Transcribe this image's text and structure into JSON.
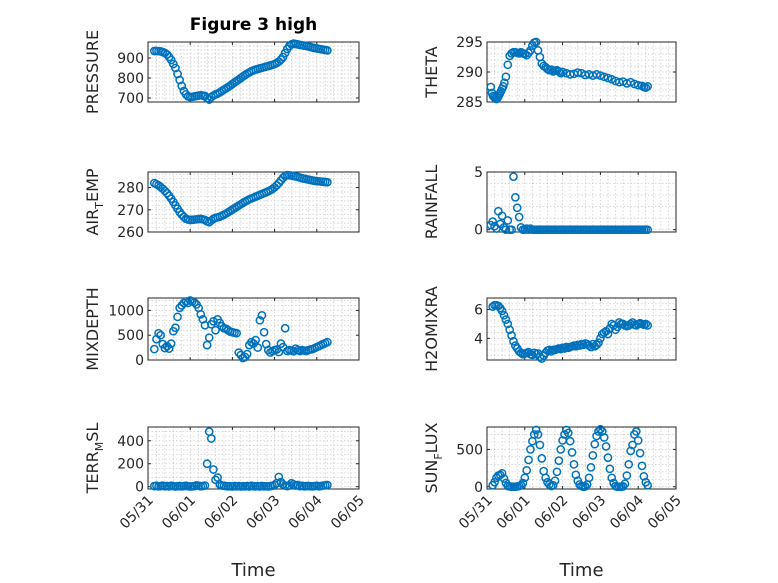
{
  "figure": {
    "title": "Figure 3 high",
    "x_tick_labels": [
      "05/31",
      "06/01",
      "06/02",
      "06/03",
      "06/04",
      "06/05"
    ],
    "xlabel": "Time",
    "marker_color": "#0072bd",
    "background": "#ffffff"
  },
  "chart_data": [
    {
      "type": "scatter",
      "panel": "PRESSURE",
      "title": "Figure 3 high",
      "ylabel": "PRESSURE",
      "ylim": [
        680,
        980
      ],
      "yticks": [
        700,
        800,
        900
      ],
      "xlim": [
        0,
        5
      ],
      "x": [
        0.15,
        0.2,
        0.25,
        0.3,
        0.35,
        0.4,
        0.45,
        0.5,
        0.55,
        0.6,
        0.65,
        0.7,
        0.75,
        0.8,
        0.85,
        0.9,
        0.95,
        1.0,
        1.05,
        1.1,
        1.15,
        1.2,
        1.25,
        1.3,
        1.35,
        1.4,
        1.45,
        1.5,
        1.55,
        1.6,
        1.65,
        1.7,
        1.75,
        1.8,
        1.85,
        1.9,
        1.95,
        2.0,
        2.05,
        2.1,
        2.15,
        2.2,
        2.25,
        2.3,
        2.35,
        2.4,
        2.45,
        2.5,
        2.55,
        2.6,
        2.65,
        2.7,
        2.75,
        2.8,
        2.85,
        2.9,
        2.95,
        3.0,
        3.05,
        3.1,
        3.15,
        3.2,
        3.25,
        3.3,
        3.35,
        3.4,
        3.45,
        3.5,
        3.55,
        3.6,
        3.65,
        3.7,
        3.75,
        3.8,
        3.85,
        3.9,
        3.95,
        4.0,
        4.05,
        4.1,
        4.15,
        4.2,
        4.25
      ],
      "y": [
        935,
        935,
        934,
        933,
        930,
        925,
        918,
        905,
        890,
        870,
        850,
        820,
        790,
        760,
        735,
        718,
        708,
        705,
        706,
        708,
        710,
        712,
        714,
        712,
        710,
        700,
        692,
        705,
        712,
        718,
        722,
        728,
        735,
        742,
        748,
        755,
        762,
        770,
        778,
        785,
        792,
        800,
        808,
        815,
        822,
        828,
        834,
        838,
        842,
        845,
        848,
        851,
        854,
        857,
        860,
        863,
        866,
        870,
        875,
        882,
        892,
        905,
        925,
        945,
        960,
        968,
        972,
        970,
        968,
        966,
        964,
        962,
        960,
        958,
        955,
        952,
        950,
        948,
        946,
        944,
        942,
        940,
        938
      ]
    },
    {
      "type": "scatter",
      "panel": "THETA",
      "ylabel": "THETA",
      "ylim": [
        285,
        295
      ],
      "yticks": [
        285,
        290,
        295
      ],
      "xlim": [
        0,
        5
      ],
      "x": [
        0.1,
        0.13,
        0.16,
        0.19,
        0.22,
        0.25,
        0.28,
        0.31,
        0.34,
        0.37,
        0.4,
        0.43,
        0.46,
        0.5,
        0.55,
        0.6,
        0.65,
        0.7,
        0.75,
        0.8,
        0.85,
        0.9,
        0.95,
        1.0,
        1.05,
        1.1,
        1.15,
        1.2,
        1.25,
        1.3,
        1.35,
        1.4,
        1.45,
        1.5,
        1.55,
        1.6,
        1.65,
        1.7,
        1.75,
        1.8,
        1.85,
        1.9,
        1.95,
        2.0,
        2.1,
        2.2,
        2.3,
        2.4,
        2.5,
        2.6,
        2.7,
        2.8,
        2.9,
        3.0,
        3.1,
        3.2,
        3.3,
        3.4,
        3.5,
        3.6,
        3.7,
        3.8,
        3.9,
        4.0,
        4.1,
        4.15,
        4.2,
        4.25
      ],
      "y": [
        287.5,
        286.5,
        286,
        285.8,
        285.6,
        285.5,
        285.7,
        286,
        286.4,
        286.8,
        287.2,
        287.6,
        288.2,
        289.2,
        291.2,
        292.7,
        293.1,
        293.3,
        293.3,
        293.2,
        293.1,
        293.3,
        293.1,
        293,
        292.8,
        293.2,
        293.6,
        294.4,
        294.9,
        295,
        293.6,
        292.5,
        291.4,
        291,
        290.8,
        290.5,
        290.3,
        290.4,
        290.1,
        290.2,
        290.3,
        290.1,
        289.8,
        290,
        289.8,
        289.6,
        289.7,
        289.9,
        289.8,
        289.5,
        289.6,
        289.4,
        289.6,
        289.4,
        289.2,
        289,
        288.8,
        288.5,
        288.3,
        288.4,
        288.1,
        288.3,
        288,
        287.8,
        287.7,
        287.5,
        287.4,
        287.6
      ]
    },
    {
      "type": "scatter",
      "panel": "AIR_TEMP",
      "ylabel": "AIR_TEMP",
      "ylim": [
        260,
        287
      ],
      "yticks": [
        260,
        270,
        280
      ],
      "xlim": [
        0,
        5
      ],
      "x": [
        0.15,
        0.2,
        0.25,
        0.3,
        0.35,
        0.4,
        0.45,
        0.5,
        0.55,
        0.6,
        0.65,
        0.7,
        0.75,
        0.8,
        0.85,
        0.9,
        0.95,
        1.0,
        1.05,
        1.1,
        1.15,
        1.2,
        1.25,
        1.3,
        1.35,
        1.4,
        1.45,
        1.5,
        1.55,
        1.6,
        1.65,
        1.7,
        1.75,
        1.8,
        1.85,
        1.9,
        1.95,
        2.0,
        2.05,
        2.1,
        2.15,
        2.2,
        2.25,
        2.3,
        2.35,
        2.4,
        2.45,
        2.5,
        2.55,
        2.6,
        2.65,
        2.7,
        2.75,
        2.8,
        2.85,
        2.9,
        2.95,
        3.0,
        3.05,
        3.1,
        3.15,
        3.2,
        3.25,
        3.3,
        3.35,
        3.4,
        3.45,
        3.5,
        3.55,
        3.6,
        3.65,
        3.7,
        3.75,
        3.8,
        3.85,
        3.9,
        3.95,
        4.0,
        4.05,
        4.1,
        4.15,
        4.2,
        4.25
      ],
      "y": [
        282,
        281.5,
        281,
        280.2,
        279.5,
        278.5,
        277.5,
        276.3,
        275,
        273.5,
        272,
        270.5,
        269,
        267.8,
        266.8,
        266,
        265.6,
        265.4,
        265.5,
        265.6,
        265.7,
        265.8,
        265.9,
        265.7,
        265.4,
        264.8,
        264.4,
        265.2,
        265.9,
        266.4,
        266.6,
        266.9,
        267.3,
        267.8,
        268.3,
        268.9,
        269.5,
        270.1,
        270.7,
        271.3,
        271.9,
        272.5,
        273.1,
        273.7,
        274.2,
        274.7,
        275.1,
        275.5,
        275.9,
        276.3,
        276.7,
        277.1,
        277.5,
        277.9,
        278.3,
        278.8,
        279.4,
        280.1,
        281,
        282,
        283.2,
        284.4,
        285.2,
        285.6,
        285.5,
        285.4,
        285.2,
        285,
        284.8,
        284.5,
        284.2,
        284,
        283.8,
        283.6,
        283.4,
        283.2,
        283,
        282.9,
        282.8,
        282.7,
        282.6,
        282.5,
        282.4
      ]
    },
    {
      "type": "scatter",
      "panel": "RAINFALL",
      "ylabel": "RAINFALL",
      "ylim": [
        -0.2,
        5
      ],
      "yticks": [
        0,
        5
      ],
      "xlim": [
        0,
        5
      ],
      "x": [
        0.1,
        0.15,
        0.2,
        0.25,
        0.3,
        0.35,
        0.4,
        0.45,
        0.5,
        0.55,
        0.6,
        0.65,
        0.7,
        0.75,
        0.8,
        0.85,
        0.9,
        0.95,
        1.0,
        1.05,
        1.1,
        1.15,
        1.2,
        1.25,
        1.3,
        1.35,
        1.4,
        1.45,
        1.5,
        1.55,
        1.6,
        1.65,
        1.7,
        1.75,
        1.8,
        1.85,
        1.9,
        1.95,
        2.0,
        2.05,
        2.1,
        2.15,
        2.2,
        2.25,
        2.3,
        2.35,
        2.4,
        2.45,
        2.5,
        2.55,
        2.6,
        2.65,
        2.7,
        2.75,
        2.8,
        2.85,
        2.9,
        2.95,
        3.0,
        3.05,
        3.1,
        3.15,
        3.2,
        3.25,
        3.3,
        3.35,
        3.4,
        3.45,
        3.5,
        3.55,
        3.6,
        3.65,
        3.7,
        3.75,
        3.8,
        3.85,
        3.9,
        3.95,
        4.0,
        4.05,
        4.1,
        4.15,
        4.2,
        4.25
      ],
      "y": [
        0.4,
        0.7,
        0.3,
        0.1,
        1.6,
        0.5,
        1.2,
        0.2,
        0,
        0.8,
        0,
        0,
        4.6,
        2.8,
        1.9,
        1.1,
        0.2,
        0,
        0,
        0.1,
        0,
        0.1,
        0,
        0,
        0,
        0,
        0,
        0,
        0,
        0,
        0,
        0,
        0,
        0,
        0,
        0,
        0,
        0,
        0,
        0,
        0,
        0,
        0,
        0,
        0,
        0,
        0,
        0,
        0,
        0,
        0,
        0,
        0,
        0,
        0,
        0,
        0,
        0,
        0,
        0,
        0,
        0,
        0,
        0,
        0,
        0,
        0,
        0,
        0,
        0,
        0,
        0,
        0,
        0,
        0,
        0,
        0,
        0,
        0,
        0,
        0,
        0,
        0,
        0
      ]
    },
    {
      "type": "scatter",
      "panel": "MIXDEPTH",
      "ylabel": "MIXDEPTH",
      "ylim": [
        0,
        1250
      ],
      "yticks": [
        0,
        500,
        1000
      ],
      "xlim": [
        0,
        5
      ],
      "x": [
        0.15,
        0.2,
        0.25,
        0.3,
        0.35,
        0.4,
        0.45,
        0.5,
        0.55,
        0.6,
        0.65,
        0.7,
        0.75,
        0.8,
        0.85,
        0.9,
        0.95,
        1.0,
        1.05,
        1.1,
        1.15,
        1.2,
        1.25,
        1.3,
        1.35,
        1.4,
        1.45,
        1.5,
        1.55,
        1.6,
        1.65,
        1.7,
        1.75,
        1.8,
        1.85,
        1.9,
        1.95,
        2.0,
        2.05,
        2.1,
        2.15,
        2.2,
        2.25,
        2.3,
        2.35,
        2.4,
        2.45,
        2.5,
        2.55,
        2.6,
        2.65,
        2.7,
        2.75,
        2.8,
        2.85,
        2.9,
        2.95,
        3.0,
        3.05,
        3.1,
        3.15,
        3.2,
        3.25,
        3.3,
        3.35,
        3.4,
        3.45,
        3.5,
        3.55,
        3.6,
        3.65,
        3.7,
        3.75,
        3.8,
        3.85,
        3.9,
        3.95,
        4.0,
        4.05,
        4.1,
        4.15,
        4.2,
        4.25
      ],
      "y": [
        220,
        420,
        540,
        500,
        320,
        240,
        280,
        230,
        330,
        580,
        650,
        870,
        1050,
        1100,
        1150,
        1180,
        1150,
        1200,
        1180,
        1160,
        1120,
        1050,
        920,
        820,
        700,
        300,
        450,
        720,
        780,
        600,
        820,
        750,
        680,
        640,
        630,
        600,
        570,
        560,
        550,
        540,
        150,
        100,
        40,
        60,
        120,
        300,
        360,
        330,
        400,
        250,
        800,
        900,
        560,
        320,
        200,
        150,
        180,
        200,
        210,
        160,
        330,
        260,
        640,
        180,
        200,
        190,
        175,
        230,
        200,
        180,
        200,
        190,
        180,
        200,
        210,
        220,
        240,
        260,
        280,
        300,
        320,
        340,
        360
      ]
    },
    {
      "type": "scatter",
      "panel": "H2OMIXRA",
      "ylabel": "H2OMIXRA",
      "ylim": [
        2.5,
        6.8
      ],
      "yticks": [
        4,
        6
      ],
      "xlim": [
        0,
        5
      ],
      "x": [
        0.15,
        0.2,
        0.25,
        0.3,
        0.35,
        0.4,
        0.45,
        0.5,
        0.55,
        0.6,
        0.65,
        0.7,
        0.75,
        0.8,
        0.85,
        0.9,
        0.95,
        1.0,
        1.05,
        1.1,
        1.15,
        1.2,
        1.25,
        1.3,
        1.35,
        1.4,
        1.45,
        1.5,
        1.55,
        1.6,
        1.65,
        1.7,
        1.75,
        1.8,
        1.85,
        1.9,
        1.95,
        2.0,
        2.05,
        2.1,
        2.15,
        2.2,
        2.25,
        2.3,
        2.35,
        2.4,
        2.45,
        2.5,
        2.55,
        2.6,
        2.65,
        2.7,
        2.75,
        2.8,
        2.85,
        2.9,
        2.95,
        3.0,
        3.05,
        3.1,
        3.15,
        3.2,
        3.25,
        3.3,
        3.35,
        3.4,
        3.45,
        3.5,
        3.55,
        3.6,
        3.65,
        3.7,
        3.75,
        3.8,
        3.85,
        3.9,
        3.95,
        4.0,
        4.05,
        4.1,
        4.15,
        4.2,
        4.25
      ],
      "y": [
        6.2,
        6.3,
        6.3,
        6.25,
        6.1,
        5.9,
        5.6,
        5.3,
        5.0,
        4.6,
        4.2,
        3.8,
        3.5,
        3.3,
        3.1,
        3.0,
        2.9,
        2.95,
        3.0,
        3.05,
        2.9,
        2.85,
        3.0,
        2.9,
        2.95,
        2.7,
        2.6,
        2.8,
        3.0,
        3.15,
        3.2,
        3.1,
        3.2,
        3.2,
        3.25,
        3.3,
        3.25,
        3.35,
        3.3,
        3.4,
        3.35,
        3.4,
        3.45,
        3.5,
        3.45,
        3.55,
        3.5,
        3.6,
        3.55,
        3.65,
        3.6,
        3.5,
        3.4,
        3.6,
        3.45,
        3.55,
        3.7,
        4.0,
        4.3,
        4.4,
        4.5,
        4.3,
        4.7,
        5.0,
        4.9,
        4.6,
        4.8,
        5.1,
        5.0,
        5.0,
        4.9,
        4.85,
        4.9,
        5.0,
        5.1,
        4.95,
        4.9,
        5.0,
        5.05,
        5.0,
        4.95,
        5.0,
        4.9
      ]
    },
    {
      "type": "scatter",
      "panel": "TERR_MSL",
      "ylabel": "TERR_MSL",
      "ylim": [
        -20,
        520
      ],
      "yticks": [
        0,
        200,
        400
      ],
      "xlim": [
        0,
        5
      ],
      "x": [
        0.15,
        0.2,
        0.25,
        0.3,
        0.35,
        0.4,
        0.45,
        0.5,
        0.55,
        0.6,
        0.65,
        0.7,
        0.75,
        0.8,
        0.85,
        0.9,
        0.95,
        1.0,
        1.05,
        1.1,
        1.15,
        1.2,
        1.25,
        1.3,
        1.35,
        1.4,
        1.45,
        1.5,
        1.55,
        1.6,
        1.65,
        1.7,
        1.75,
        1.8,
        1.85,
        1.9,
        1.95,
        2.0,
        2.05,
        2.1,
        2.15,
        2.2,
        2.25,
        2.3,
        2.35,
        2.4,
        2.45,
        2.5,
        2.55,
        2.6,
        2.65,
        2.7,
        2.75,
        2.8,
        2.85,
        2.9,
        2.95,
        3.0,
        3.05,
        3.1,
        3.15,
        3.2,
        3.25,
        3.3,
        3.35,
        3.4,
        3.45,
        3.5,
        3.55,
        3.6,
        3.65,
        3.7,
        3.75,
        3.8,
        3.85,
        3.9,
        3.95,
        4.0,
        4.05,
        4.1,
        4.15,
        4.2,
        4.25
      ],
      "y": [
        5,
        8,
        3,
        5,
        10,
        4,
        6,
        3,
        8,
        5,
        2,
        4,
        6,
        3,
        5,
        8,
        4,
        2,
        3,
        5,
        12,
        8,
        4,
        6,
        10,
        200,
        480,
        420,
        150,
        60,
        80,
        20,
        10,
        8,
        5,
        3,
        4,
        2,
        6,
        3,
        5,
        2,
        4,
        3,
        6,
        2,
        8,
        4,
        3,
        5,
        2,
        6,
        3,
        4,
        2,
        5,
        8,
        15,
        30,
        85,
        40,
        20,
        10,
        5,
        10,
        30,
        20,
        10,
        15,
        5,
        8,
        3,
        5,
        6,
        4,
        3,
        5,
        8,
        4,
        6,
        10,
        12,
        15
      ]
    },
    {
      "type": "scatter",
      "panel": "SUN_FLUX",
      "ylabel": "SUN_FLUX",
      "ylim": [
        -30,
        800
      ],
      "yticks": [
        0,
        500
      ],
      "xlim": [
        0,
        5
      ],
      "x": [
        0.15,
        0.2,
        0.25,
        0.3,
        0.35,
        0.4,
        0.45,
        0.5,
        0.55,
        0.6,
        0.65,
        0.7,
        0.75,
        0.8,
        0.85,
        0.9,
        0.95,
        1.0,
        1.05,
        1.1,
        1.15,
        1.2,
        1.25,
        1.3,
        1.35,
        1.4,
        1.45,
        1.5,
        1.55,
        1.6,
        1.65,
        1.7,
        1.75,
        1.8,
        1.85,
        1.9,
        1.95,
        2.0,
        2.05,
        2.1,
        2.15,
        2.2,
        2.25,
        2.3,
        2.35,
        2.4,
        2.45,
        2.5,
        2.55,
        2.6,
        2.65,
        2.7,
        2.75,
        2.8,
        2.85,
        2.9,
        2.95,
        3.0,
        3.05,
        3.1,
        3.15,
        3.2,
        3.25,
        3.3,
        3.35,
        3.4,
        3.45,
        3.5,
        3.55,
        3.6,
        3.65,
        3.7,
        3.75,
        3.8,
        3.85,
        3.9,
        3.95,
        4.0,
        4.05,
        4.1,
        4.15,
        4.2,
        4.25
      ],
      "y": [
        20,
        60,
        120,
        150,
        160,
        180,
        110,
        50,
        10,
        5,
        0,
        0,
        0,
        5,
        10,
        20,
        50,
        120,
        220,
        360,
        500,
        610,
        700,
        760,
        700,
        560,
        380,
        210,
        120,
        60,
        30,
        10,
        20,
        80,
        200,
        350,
        500,
        620,
        700,
        760,
        720,
        610,
        460,
        300,
        160,
        80,
        30,
        10,
        0,
        5,
        30,
        120,
        260,
        420,
        570,
        680,
        740,
        770,
        740,
        660,
        540,
        390,
        240,
        120,
        50,
        10,
        0,
        0,
        0,
        5,
        40,
        150,
        300,
        480,
        560,
        700,
        740,
        620,
        450,
        280,
        140,
        60,
        20
      ]
    }
  ]
}
